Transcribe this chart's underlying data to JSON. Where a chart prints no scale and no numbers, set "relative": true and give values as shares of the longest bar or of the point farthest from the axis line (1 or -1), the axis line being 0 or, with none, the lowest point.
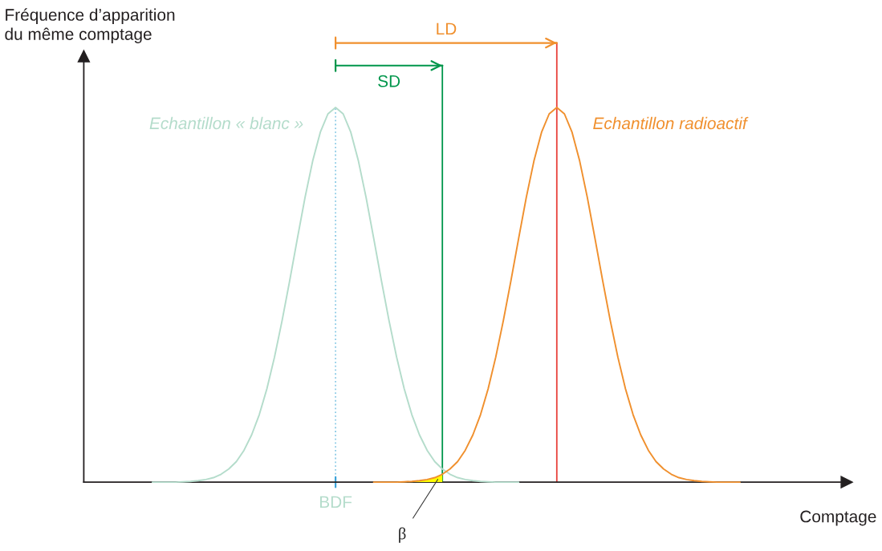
{
  "chart_data": {
    "type": "line",
    "relative": true,
    "ylabel": "Fréquence d’apparition\ndu même comptage",
    "xlabel": "Comptage",
    "categories": [
      null,
      null,
      null,
      null,
      null,
      null,
      null,
      null,
      null,
      null,
      null,
      null,
      null,
      null,
      null,
      null,
      null,
      null,
      null,
      null,
      null,
      null,
      null,
      null,
      null,
      null,
      null,
      null,
      null,
      null,
      null,
      null,
      null,
      null,
      null,
      null,
      null,
      null,
      null,
      null,
      null,
      null,
      null,
      null,
      null,
      null,
      null,
      null,
      null,
      null,
      null,
      null,
      null,
      null,
      null,
      null,
      null,
      null,
      null,
      null,
      null,
      null,
      null,
      null,
      null,
      null,
      null,
      null,
      null,
      null,
      null,
      null,
      null,
      null,
      null,
      null,
      null,
      null,
      null,
      null,
      null,
      null,
      null,
      null,
      null,
      null,
      null,
      null,
      null,
      null,
      null,
      null,
      null,
      null,
      null,
      null,
      null,
      null,
      null,
      null,
      null
    ],
    "series": [
      {
        "name": "Echantillon « blanc »",
        "color": "#b4dccb",
        "values": [
          null,
          null,
          null,
          null,
          null,
          null,
          null,
          null,
          null,
          0,
          0,
          0,
          0,
          0.001,
          0.002,
          0.004,
          0.007,
          0.012,
          0.021,
          0.035,
          0.055,
          0.085,
          0.126,
          0.18,
          0.249,
          0.334,
          0.432,
          0.539,
          0.651,
          0.76,
          0.857,
          0.934,
          0.983,
          1,
          0.983,
          0.934,
          0.857,
          0.76,
          0.651,
          0.539,
          0.432,
          0.334,
          0.249,
          0.18,
          0.126,
          0.085,
          0.055,
          0.035,
          0.021,
          0.012,
          0.007,
          0.004,
          0.002,
          0.001,
          0,
          0,
          0,
          0,
          null,
          null,
          null,
          null,
          null,
          null,
          null,
          null,
          null,
          null,
          null,
          null,
          null,
          null,
          null,
          null,
          null,
          null,
          null,
          null,
          null,
          null,
          null,
          null,
          null,
          null,
          null,
          null,
          null,
          null,
          null,
          null,
          null,
          null,
          null,
          null,
          null,
          null,
          null,
          null,
          null,
          null,
          null
        ]
      },
      {
        "name": "Echantillon radioactif",
        "color": "#f0902e",
        "values": [
          null,
          null,
          null,
          null,
          null,
          null,
          null,
          null,
          null,
          null,
          null,
          null,
          null,
          null,
          null,
          null,
          null,
          null,
          null,
          null,
          null,
          null,
          null,
          null,
          null,
          null,
          null,
          null,
          null,
          null,
          null,
          null,
          null,
          null,
          null,
          null,
          null,
          null,
          0,
          0,
          0,
          0,
          0.001,
          0.002,
          0.004,
          0.007,
          0.012,
          0.021,
          0.035,
          0.055,
          0.085,
          0.126,
          0.18,
          0.249,
          0.334,
          0.432,
          0.539,
          0.651,
          0.76,
          0.857,
          0.934,
          0.983,
          1,
          0.983,
          0.934,
          0.857,
          0.76,
          0.651,
          0.539,
          0.432,
          0.334,
          0.249,
          0.18,
          0.126,
          0.085,
          0.055,
          0.035,
          0.021,
          0.012,
          0.007,
          0.004,
          0.002,
          0.001,
          0,
          0,
          0,
          0,
          null,
          null,
          null,
          null,
          null,
          null,
          null,
          null,
          null,
          null,
          null,
          null,
          null,
          null
        ]
      },
      {
        "type": "area",
        "color": "#ffff00",
        "values": [
          null,
          null,
          null,
          null,
          null,
          null,
          null,
          null,
          null,
          null,
          null,
          null,
          null,
          null,
          null,
          null,
          null,
          null,
          null,
          null,
          null,
          null,
          null,
          null,
          null,
          null,
          null,
          null,
          null,
          null,
          null,
          null,
          null,
          null,
          null,
          null,
          null,
          null,
          0,
          0,
          0,
          0,
          0.001,
          0.002,
          0.004,
          0.007,
          0.012,
          0.021,
          null,
          null,
          null,
          null,
          null,
          null,
          null,
          null,
          null,
          null,
          null,
          null,
          null,
          null,
          null,
          null,
          null,
          null,
          null,
          null,
          null,
          null,
          null,
          null,
          null,
          null,
          null,
          null,
          null,
          null,
          null,
          null,
          null,
          null,
          null,
          null,
          null,
          null,
          null,
          null,
          null,
          null,
          null,
          null,
          null,
          null,
          null,
          null,
          null,
          null,
          null,
          null,
          null
        ]
      }
    ],
    "annotations": [
      "BDF",
      "SD",
      "LD",
      "β"
    ],
    "line_style": "solid",
    "marker": "none"
  }
}
